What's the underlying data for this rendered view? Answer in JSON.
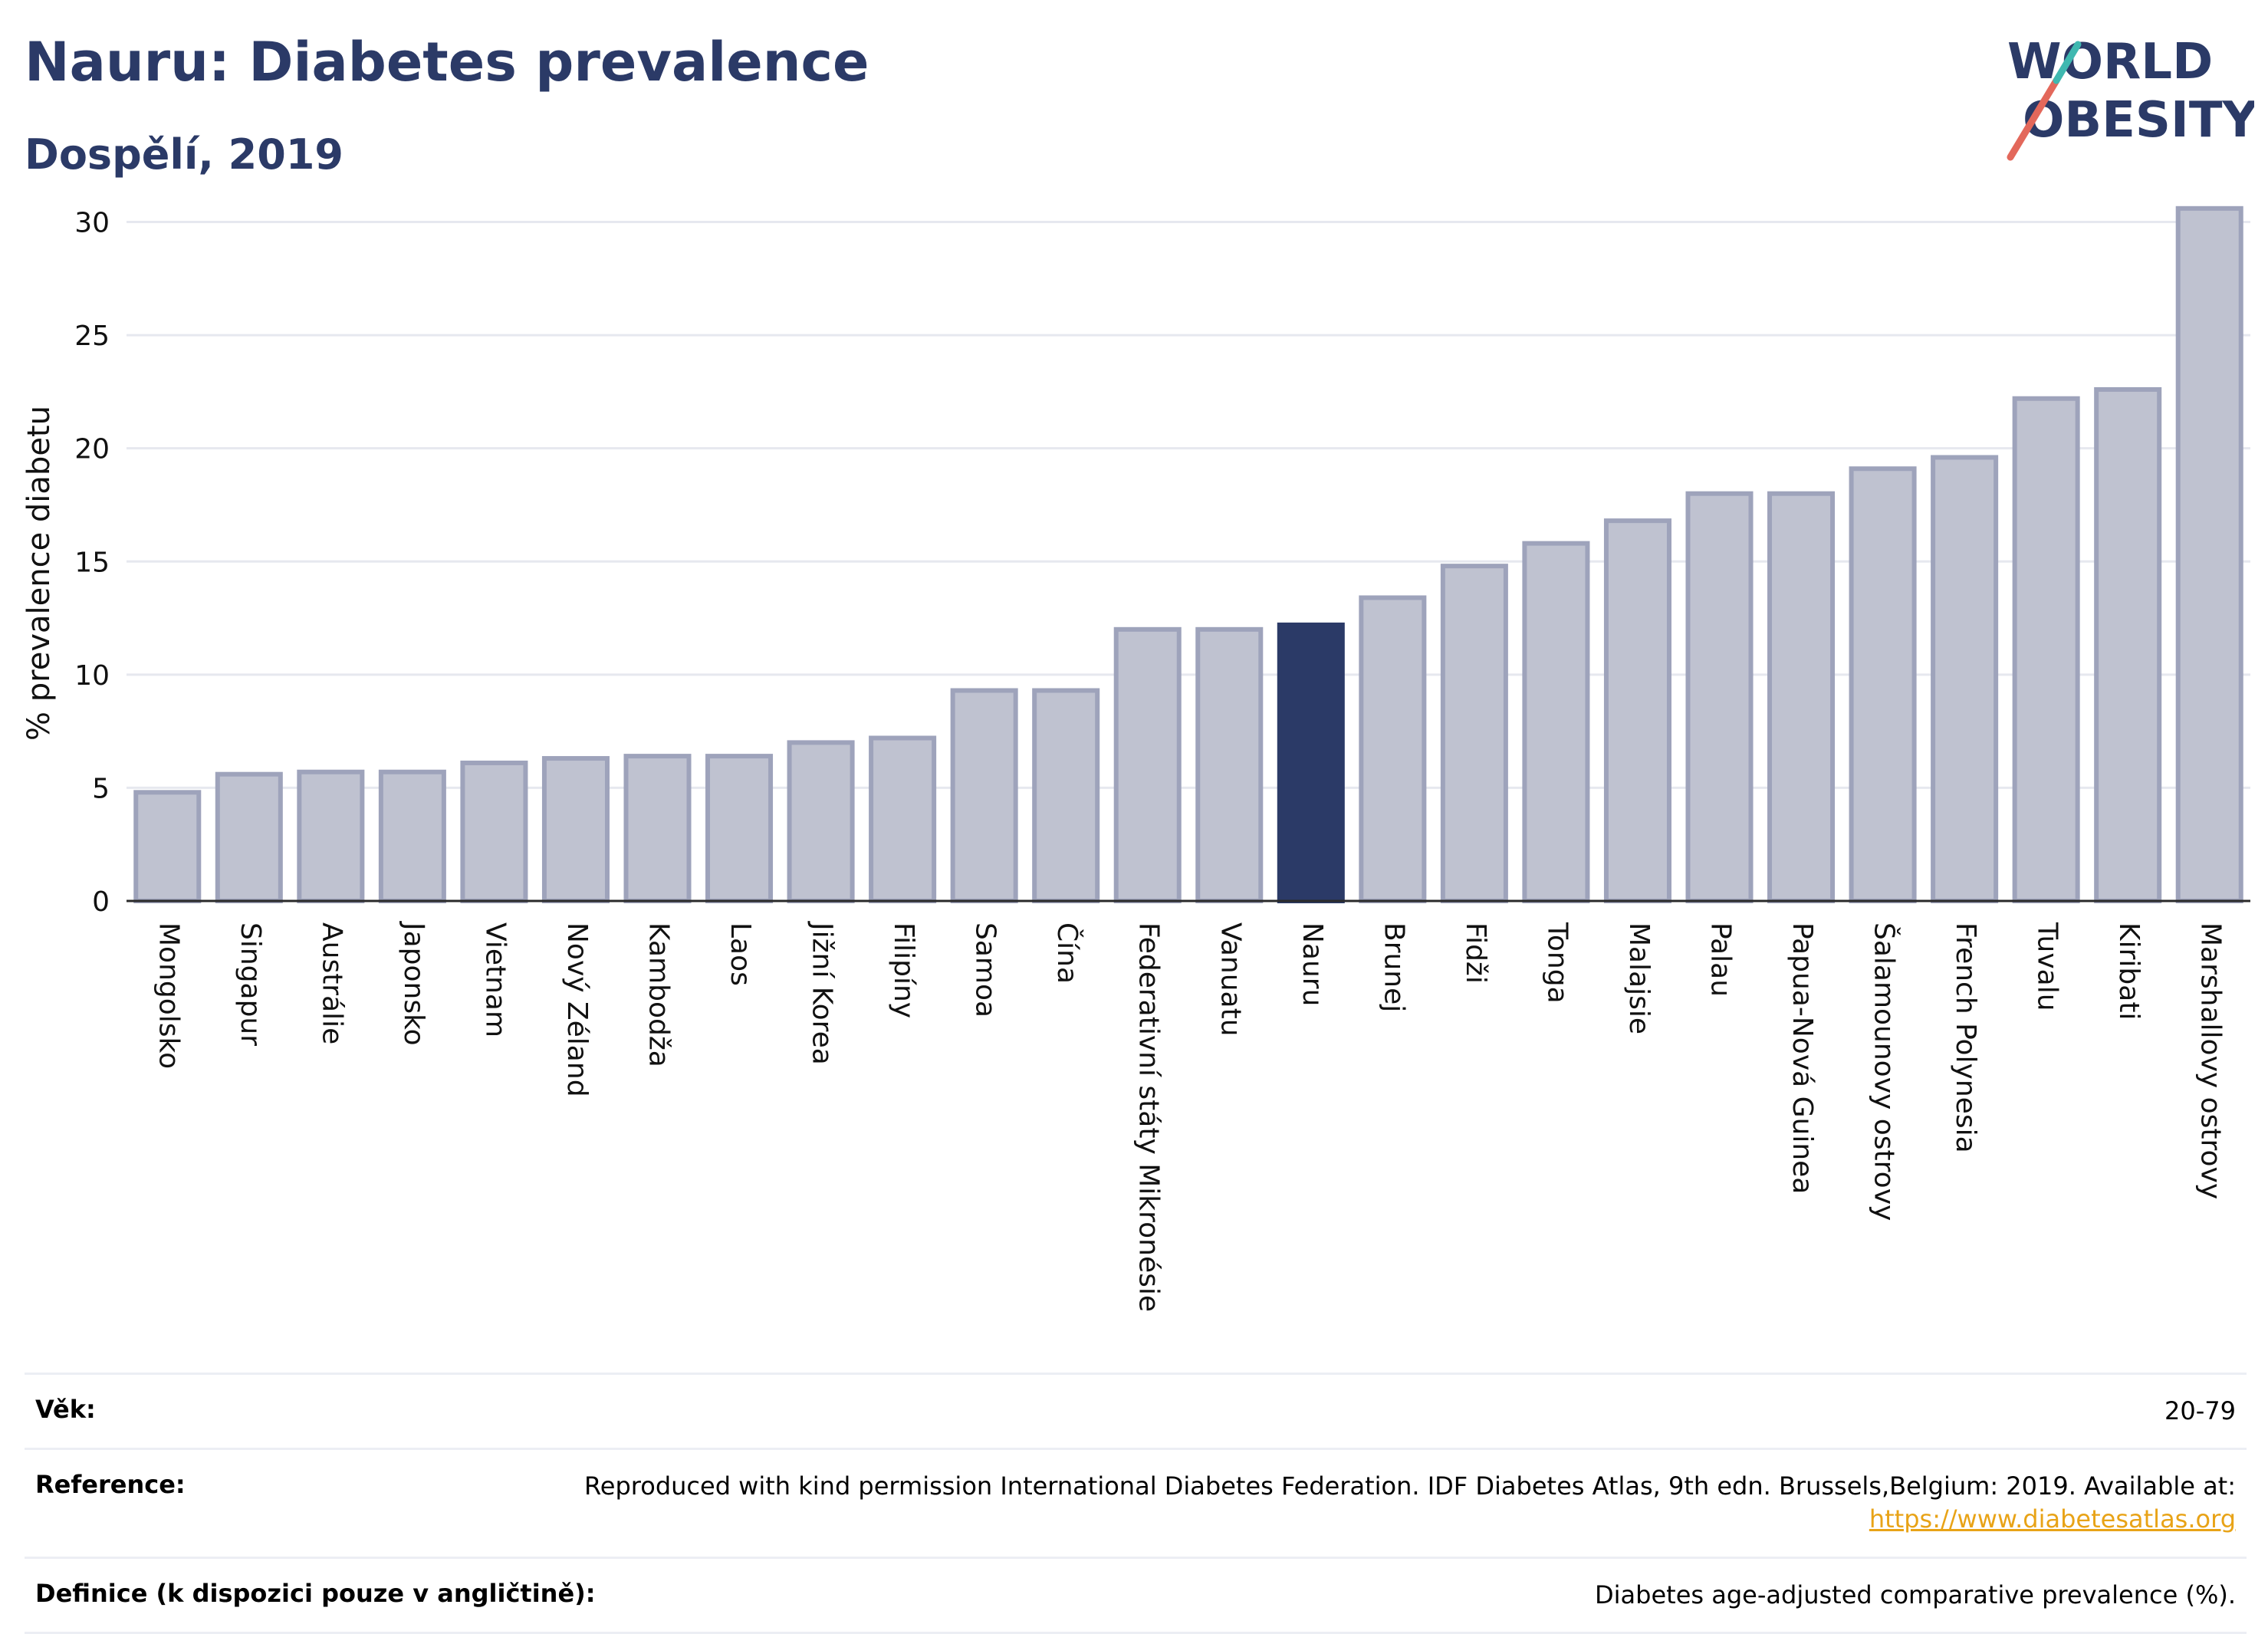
{
  "header": {
    "title": "Nauru: Diabetes prevalence",
    "subtitle": "Dospělí, 2019"
  },
  "logo": {
    "line1": "WORLD",
    "line2": "OBESITY",
    "accent_colors": [
      "#e3685b",
      "#3fb8b0"
    ]
  },
  "colors": {
    "bar": "#bfc2d0",
    "bar_stroke": "#9ea3bb",
    "highlight": "#2b3a67",
    "grid": "#e6e8ef",
    "title": "#2b3a67"
  },
  "chart_data": {
    "type": "bar",
    "title": "Nauru: Diabetes prevalence",
    "subtitle": "Dospělí, 2019",
    "ylabel": "% prevalence diabetu",
    "xlabel": "",
    "ylim": [
      0,
      31
    ],
    "yticks": [
      0,
      5,
      10,
      15,
      20,
      25,
      30
    ],
    "grid": true,
    "highlight": "Nauru",
    "categories": [
      "Mongolsko",
      "Singapur",
      "Austrálie",
      "Japonsko",
      "Vietnam",
      "Nový Zéland",
      "Kambodža",
      "Laos",
      "Jižní Korea",
      "Filipíny",
      "Samoa",
      "Čína",
      "Federativní státy Mikronésie",
      "Vanuatu",
      "Nauru",
      "Brunej",
      "Fidži",
      "Tonga",
      "Malajsie",
      "Palau",
      "Papua-Nová Guinea",
      "Šalamounovy ostrovy",
      "French Polynesia",
      "Tuvalu",
      "Kiribati",
      "Marshallovy ostrovy"
    ],
    "values": [
      4.8,
      5.6,
      5.7,
      5.7,
      6.1,
      6.3,
      6.4,
      6.4,
      7.0,
      7.2,
      9.3,
      9.3,
      12.0,
      12.0,
      12.2,
      13.4,
      14.8,
      15.8,
      16.8,
      18.0,
      18.0,
      19.1,
      19.6,
      22.2,
      22.6,
      30.6
    ]
  },
  "footer": {
    "rows": [
      {
        "label": "Věk:",
        "value": "20-79",
        "link": ""
      },
      {
        "label": "Reference:",
        "value": "Reproduced with kind permission International Diabetes Federation. IDF Diabetes Atlas, 9th edn. Brussels,Belgium: 2019. Available at:",
        "link": "https://www.diabetesatlas.org"
      },
      {
        "label": "Definice (k dispozici pouze v angličtině):",
        "value": "Diabetes age-adjusted comparative prevalence (%).",
        "link": ""
      }
    ]
  }
}
